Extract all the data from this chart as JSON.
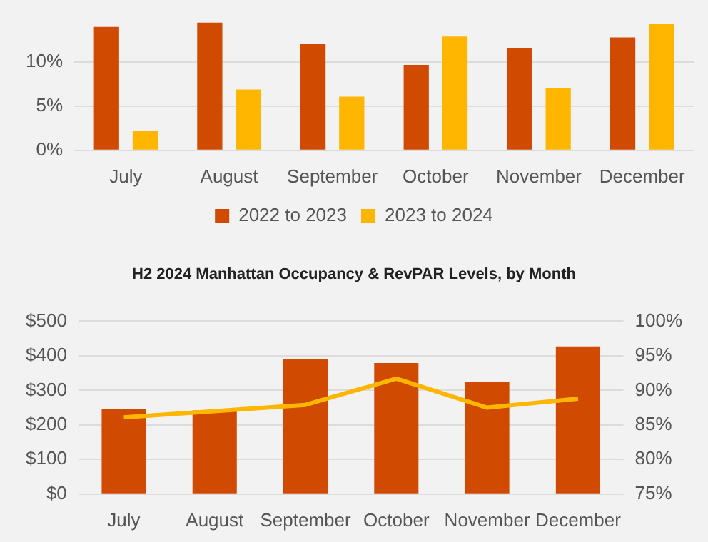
{
  "chart_data": [
    {
      "type": "bar",
      "categories": [
        "July",
        "August",
        "September",
        "October",
        "November",
        "December"
      ],
      "series": [
        {
          "name": "2022 to 2023",
          "color": "#d04a02",
          "values": [
            14.0,
            14.5,
            12.1,
            9.7,
            11.6,
            12.8
          ]
        },
        {
          "name": "2023 to 2024",
          "color": "#ffb600",
          "values": [
            2.2,
            6.9,
            6.1,
            12.9,
            7.1,
            14.3
          ]
        }
      ],
      "ylim": [
        0,
        14.5
      ],
      "yticks": [
        {
          "value": 0,
          "label": "0%"
        },
        {
          "value": 5,
          "label": "5%"
        },
        {
          "value": 10,
          "label": "10%"
        }
      ],
      "grid": "y",
      "legend": "bottom"
    },
    {
      "type": "bar",
      "title": "H2 2024 Manhattan Occupancy & RevPAR Levels, by Month",
      "categories": [
        "July",
        "August",
        "September",
        "October",
        "November",
        "December"
      ],
      "series": [
        {
          "color": "#d04a02",
          "values": [
            245,
            242,
            391,
            379,
            324,
            427
          ]
        },
        {
          "type": "line",
          "axis": "y2",
          "color": "#ffb600",
          "values": [
            86.1,
            87.0,
            87.9,
            91.7,
            87.5,
            88.8
          ]
        }
      ],
      "ylim": [
        0,
        500
      ],
      "yticks": [
        {
          "value": 0,
          "label": "$0"
        },
        {
          "value": 100,
          "label": "$100"
        },
        {
          "value": 200,
          "label": "$200"
        },
        {
          "value": 300,
          "label": "$300"
        },
        {
          "value": 400,
          "label": "$400"
        },
        {
          "value": 500,
          "label": "$500"
        }
      ],
      "y2lim": [
        75,
        100
      ],
      "y2ticks": [
        {
          "value": 75,
          "label": "75%"
        },
        {
          "value": 80,
          "label": "80%"
        },
        {
          "value": 85,
          "label": "85%"
        },
        {
          "value": 90,
          "label": "90%"
        },
        {
          "value": 95,
          "label": "95%"
        },
        {
          "value": 100,
          "label": "100%"
        }
      ],
      "grid": "y",
      "legend": false
    }
  ]
}
